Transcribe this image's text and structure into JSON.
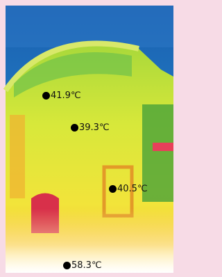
{
  "labels": [
    {
      "text": "41.9℃"
    },
    {
      "text": "39.3℃"
    },
    {
      "text": "40.5℃"
    },
    {
      "text": "58.3℃"
    }
  ]
}
